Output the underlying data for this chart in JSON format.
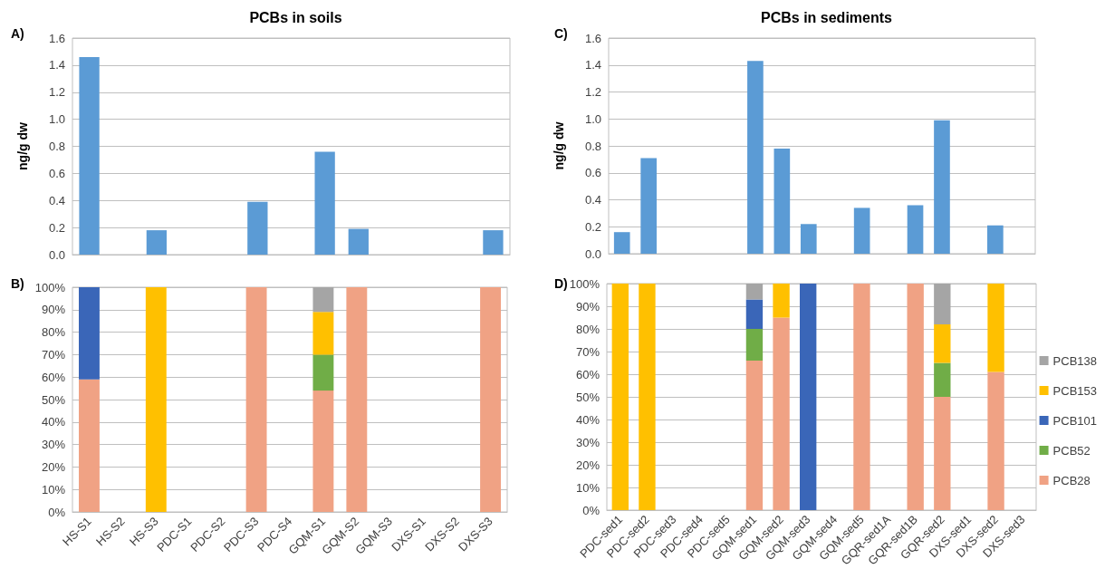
{
  "chart_data": [
    {
      "type": "bar",
      "title": "PCBs in soils",
      "ylabel": "ng/g dw",
      "annotations": [
        "A)"
      ],
      "categories": [
        null,
        null,
        null,
        null,
        null,
        null,
        null,
        null,
        null,
        null,
        null,
        null,
        null
      ],
      "series": [
        {
          "color": "#5b9bd5",
          "values": [
            1.46,
            null,
            0.18,
            null,
            null,
            0.39,
            null,
            0.76,
            0.19,
            null,
            null,
            null,
            0.18
          ]
        }
      ],
      "ylim": [
        0,
        1.6
      ],
      "yticks": [
        {
          "value": 0,
          "label": "0.0"
        },
        {
          "value": 0.2,
          "label": "0.2"
        },
        {
          "value": 0.4,
          "label": "0.4"
        },
        {
          "value": 0.6,
          "label": "0.6"
        },
        {
          "value": 0.8,
          "label": "0.8"
        },
        {
          "value": 1,
          "label": "1.0"
        },
        {
          "value": 1.2,
          "label": "1.2"
        },
        {
          "value": 1.4,
          "label": "1.4"
        },
        {
          "value": 1.6,
          "label": "1.6"
        }
      ],
      "grid": "y",
      "tick_labels": "y"
    },
    {
      "type": "bar",
      "stacked": true,
      "annotations": [
        "B)"
      ],
      "categories": [
        "HS-S1",
        "HS-S2",
        "HS-S3",
        "PDC-S1",
        "PDC-S2",
        "PDC-S3",
        "PDC-S4",
        "GQM-S1",
        "GQM-S2",
        "GQM-S3",
        "DXS-S1",
        "DXS-S2",
        "DXS-S3"
      ],
      "series": [
        {
          "color": "#f0a284",
          "values": [
            59,
            null,
            null,
            null,
            null,
            100,
            null,
            54,
            100,
            null,
            null,
            null,
            100
          ]
        },
        {
          "color": "#70ad47",
          "values": [
            null,
            null,
            null,
            null,
            null,
            null,
            null,
            16,
            null,
            null,
            null,
            null,
            null
          ]
        },
        {
          "color": "#3a66b8",
          "values": [
            41,
            null,
            null,
            null,
            null,
            null,
            null,
            null,
            null,
            null,
            null,
            null,
            null
          ]
        },
        {
          "color": "#ffc000",
          "values": [
            null,
            null,
            100,
            null,
            null,
            null,
            null,
            19,
            null,
            null,
            null,
            null,
            null
          ]
        },
        {
          "color": "#a5a5a5",
          "values": [
            null,
            null,
            null,
            null,
            null,
            null,
            null,
            11,
            null,
            null,
            null,
            null,
            null
          ]
        }
      ],
      "ylim": [
        0,
        100
      ],
      "yticks": [
        {
          "value": 0,
          "label": "0%"
        },
        {
          "value": 10,
          "label": "10%"
        },
        {
          "value": 20,
          "label": "20%"
        },
        {
          "value": 30,
          "label": "30%"
        },
        {
          "value": 40,
          "label": "40%"
        },
        {
          "value": 50,
          "label": "50%"
        },
        {
          "value": 60,
          "label": "60%"
        },
        {
          "value": 70,
          "label": "70%"
        },
        {
          "value": 80,
          "label": "80%"
        },
        {
          "value": 90,
          "label": "90%"
        },
        {
          "value": 100,
          "label": "100%"
        }
      ],
      "grid": "y"
    },
    {
      "type": "bar",
      "title": "PCBs in sediments",
      "ylabel": "ng/g dw",
      "annotations": [
        "C)"
      ],
      "categories": [
        null,
        null,
        null,
        null,
        null,
        null,
        null,
        null,
        null,
        null,
        null,
        null,
        null,
        null,
        null,
        null
      ],
      "series": [
        {
          "color": "#5b9bd5",
          "values": [
            0.16,
            0.71,
            null,
            null,
            null,
            1.43,
            0.78,
            0.22,
            null,
            0.34,
            null,
            0.36,
            0.99,
            null,
            0.21,
            null
          ]
        }
      ],
      "ylim": [
        0,
        1.6
      ],
      "yticks": [
        {
          "value": 0,
          "label": "0.0"
        },
        {
          "value": 0.2,
          "label": "0.2"
        },
        {
          "value": 0.4,
          "label": "0.4"
        },
        {
          "value": 0.6,
          "label": "0.6"
        },
        {
          "value": 0.8,
          "label": "0.8"
        },
        {
          "value": 1,
          "label": "1.0"
        },
        {
          "value": 1.2,
          "label": "1.2"
        },
        {
          "value": 1.4,
          "label": "1.4"
        },
        {
          "value": 1.6,
          "label": "1.6"
        }
      ],
      "grid": "y",
      "tick_labels": "y"
    },
    {
      "type": "bar",
      "stacked": true,
      "annotations": [
        "D)"
      ],
      "categories": [
        "PDC-sed1",
        "PDC-sed2",
        "PDC-sed3",
        "PDC-sed4",
        "PDC-sed5",
        "GQM-sed1",
        "GQM-sed2",
        "GQM-sed3",
        "GQM-sed4",
        "GQM-sed5",
        "GQR-sed1A",
        "GQR-sed1B",
        "GQR-sed2",
        "DXS-sed1",
        "DXS-sed2",
        "DXS-sed3"
      ],
      "series": [
        {
          "name": "PCB28",
          "color": "#f0a284",
          "values": [
            null,
            null,
            null,
            null,
            null,
            66,
            85,
            null,
            null,
            100,
            null,
            100,
            50,
            null,
            61,
            null
          ]
        },
        {
          "name": "PCB52",
          "color": "#70ad47",
          "values": [
            null,
            null,
            null,
            null,
            null,
            14,
            null,
            null,
            null,
            null,
            null,
            null,
            15,
            null,
            null,
            null
          ]
        },
        {
          "name": "PCB101",
          "color": "#3a66b8",
          "values": [
            null,
            null,
            null,
            null,
            null,
            13,
            null,
            100,
            null,
            null,
            null,
            null,
            null,
            null,
            null,
            null
          ]
        },
        {
          "name": "PCB153",
          "color": "#ffc000",
          "values": [
            100,
            100,
            null,
            null,
            null,
            null,
            15,
            null,
            null,
            null,
            null,
            null,
            17,
            null,
            39,
            null
          ]
        },
        {
          "name": "PCB138",
          "color": "#a5a5a5",
          "values": [
            null,
            null,
            null,
            null,
            null,
            7,
            null,
            null,
            null,
            null,
            null,
            null,
            18,
            null,
            null,
            null
          ]
        }
      ],
      "ylim": [
        0,
        100
      ],
      "yticks": [
        {
          "value": 0,
          "label": "0%"
        },
        {
          "value": 10,
          "label": "10%"
        },
        {
          "value": 20,
          "label": "20%"
        },
        {
          "value": 30,
          "label": "30%"
        },
        {
          "value": 40,
          "label": "40%"
        },
        {
          "value": 50,
          "label": "50%"
        },
        {
          "value": 60,
          "label": "60%"
        },
        {
          "value": 70,
          "label": "70%"
        },
        {
          "value": 80,
          "label": "80%"
        },
        {
          "value": 90,
          "label": "90%"
        },
        {
          "value": 100,
          "label": "100%"
        }
      ],
      "grid": "y",
      "legend": "right"
    }
  ]
}
